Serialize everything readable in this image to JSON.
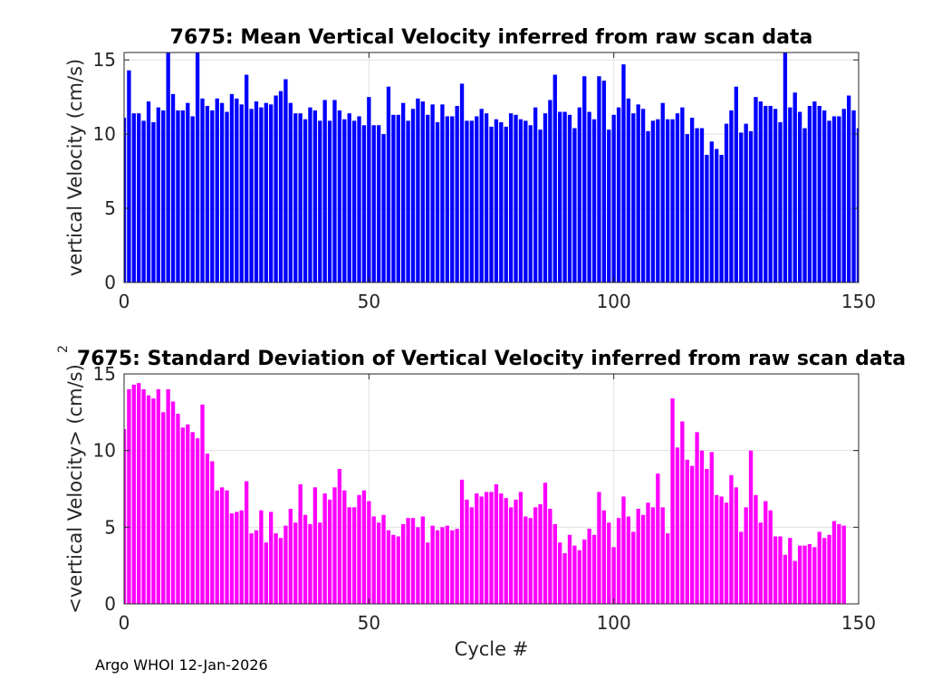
{
  "footer": "Argo WHOI 12-Jan-2026",
  "chart_data": [
    {
      "type": "bar",
      "title": "7675: Mean Vertical Velocity inferred from raw scan data",
      "xlabel": "",
      "ylabel": "vertical Velocity (cm/s)",
      "xlim": [
        0,
        150
      ],
      "ylim": [
        0,
        15.5
      ],
      "xticks": [
        0,
        50,
        100,
        150
      ],
      "yticks": [
        0,
        5,
        10,
        15
      ],
      "grid": true,
      "color": "#0000ff",
      "x_start": 0,
      "values": [
        11.1,
        14.3,
        11.4,
        11.4,
        10.9,
        12.2,
        10.8,
        11.8,
        11.6,
        15.5,
        12.7,
        11.6,
        11.6,
        12.1,
        11.2,
        15.5,
        12.4,
        11.9,
        11.6,
        12.4,
        12.1,
        11.5,
        12.7,
        12.4,
        12.0,
        14.0,
        11.7,
        12.2,
        11.8,
        12.1,
        12.0,
        12.6,
        12.9,
        13.7,
        12.1,
        11.4,
        11.4,
        11.0,
        11.8,
        11.6,
        10.9,
        12.3,
        10.9,
        12.3,
        11.6,
        11.0,
        11.4,
        10.9,
        11.2,
        10.6,
        12.5,
        10.6,
        10.6,
        10.0,
        13.2,
        11.3,
        11.3,
        12.1,
        10.9,
        11.7,
        12.4,
        12.2,
        11.3,
        12.0,
        10.8,
        12.0,
        11.2,
        11.2,
        11.9,
        13.4,
        10.9,
        10.9,
        11.2,
        11.7,
        11.4,
        10.5,
        11.0,
        10.8,
        10.5,
        11.4,
        11.3,
        11.0,
        10.9,
        10.6,
        11.8,
        10.3,
        11.4,
        12.3,
        14.0,
        11.5,
        11.5,
        11.3,
        10.4,
        11.8,
        13.9,
        11.5,
        11.0,
        13.9,
        13.6,
        10.3,
        11.3,
        11.8,
        14.7,
        12.4,
        11.4,
        12.0,
        11.7,
        10.2,
        10.9,
        11.0,
        12.1,
        11.0,
        11.0,
        11.4,
        11.8,
        10.0,
        11.1,
        10.4,
        10.4,
        8.6,
        9.5,
        9.0,
        8.6,
        10.7,
        11.6,
        13.2,
        10.1,
        10.7,
        10.2,
        12.5,
        12.2,
        11.9,
        11.9,
        11.7,
        10.8,
        15.5,
        11.8,
        12.8,
        11.5,
        10.4,
        11.9,
        12.2,
        11.9,
        11.6,
        10.9,
        11.2,
        11.2,
        11.7,
        12.6,
        11.6,
        10.4
      ]
    },
    {
      "type": "bar",
      "title": "7675: Standard Deviation of Vertical Velocity inferred from raw scan data",
      "xlabel": "Cycle #",
      "ylabel": "<vertical Velocity> (cm/s)",
      "ylabel_superscript": "2",
      "xlim": [
        0,
        150
      ],
      "ylim": [
        0,
        15
      ],
      "xticks": [
        0,
        50,
        100,
        150
      ],
      "yticks": [
        0,
        5,
        10,
        15
      ],
      "grid": true,
      "color": "#ff00ff",
      "x_start": 0,
      "values": [
        11.4,
        14.0,
        14.3,
        14.4,
        14.0,
        13.6,
        13.4,
        14.0,
        12.5,
        14.0,
        13.2,
        12.4,
        11.5,
        11.7,
        11.2,
        10.8,
        13.0,
        9.8,
        9.3,
        7.4,
        7.6,
        7.4,
        5.9,
        6.0,
        6.1,
        8.0,
        4.6,
        4.8,
        6.1,
        4.0,
        6.0,
        4.6,
        4.3,
        5.1,
        6.2,
        5.3,
        7.8,
        5.8,
        5.2,
        7.6,
        5.3,
        7.2,
        6.8,
        7.6,
        8.8,
        7.4,
        6.3,
        6.3,
        7.1,
        7.4,
        6.7,
        5.7,
        5.3,
        5.8,
        4.8,
        4.5,
        4.4,
        5.2,
        5.6,
        5.6,
        5.0,
        5.7,
        4.0,
        5.1,
        4.8,
        5.0,
        5.1,
        4.8,
        4.9,
        8.1,
        6.8,
        6.3,
        7.2,
        7.0,
        7.3,
        7.3,
        7.8,
        7.2,
        6.9,
        6.3,
        6.8,
        7.3,
        5.7,
        5.6,
        6.3,
        6.5,
        7.9,
        6.2,
        5.2,
        4.0,
        3.3,
        4.5,
        3.8,
        3.5,
        4.2,
        4.9,
        4.5,
        7.3,
        6.1,
        5.3,
        3.7,
        5.6,
        7.0,
        5.7,
        4.7,
        6.2,
        5.8,
        6.6,
        6.3,
        8.5,
        6.3,
        4.6,
        13.4,
        10.2,
        11.9,
        9.4,
        9.0,
        11.2,
        10.0,
        8.8,
        9.9,
        7.1,
        7.0,
        6.6,
        8.4,
        7.6,
        4.7,
        6.3,
        10.0,
        7.1,
        5.3,
        6.7,
        6.1,
        4.4,
        4.4,
        3.2,
        4.3,
        2.8,
        3.8,
        3.8,
        3.9,
        3.7,
        4.7,
        4.3,
        4.5,
        5.4,
        5.2,
        5.1
      ]
    }
  ]
}
